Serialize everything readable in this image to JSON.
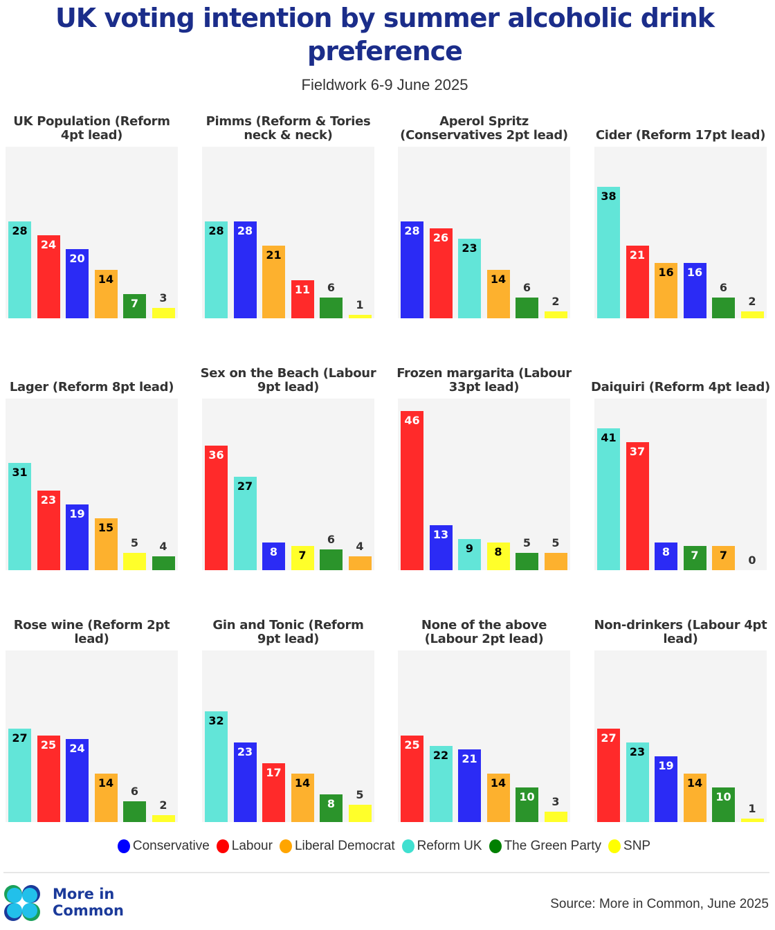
{
  "header": {
    "title": "UK voting intention by summer alcoholic drink preference",
    "subtitle": "Fieldwork 6-9 June 2025"
  },
  "parties": {
    "con": {
      "name": "Conservative",
      "color": "#2b2bf5",
      "label_color": "#ffffff"
    },
    "lab": {
      "name": "Labour",
      "color": "#ff2a2a",
      "label_color": "#ffffff"
    },
    "ld": {
      "name": "Liberal Democrat",
      "color": "#fdb12e",
      "label_color": "#000000"
    },
    "ref": {
      "name": "Reform UK",
      "color": "#62e5d8",
      "label_color": "#000000"
    },
    "grn": {
      "name": "The Green Party",
      "color": "#2b942b",
      "label_color": "#ffffff"
    },
    "snp": {
      "name": "SNP",
      "color": "#ffff2a",
      "label_color": "#000000"
    }
  },
  "legend": [
    {
      "key": "con",
      "label": "Conservative",
      "color": "#0000ff"
    },
    {
      "key": "lab",
      "label": "Labour",
      "color": "#ff0000"
    },
    {
      "key": "ld",
      "label": "Liberal Democrat",
      "color": "#ffa500"
    },
    {
      "key": "ref",
      "label": "Reform UK",
      "color": "#40e0d0"
    },
    {
      "key": "grn",
      "label": "The Green Party",
      "color": "#008000"
    },
    {
      "key": "snp",
      "label": "SNP",
      "color": "#ffff00"
    }
  ],
  "footer": {
    "brand_line1": "More in",
    "brand_line2": "Common",
    "source": "Source: More in Common, June 2025"
  },
  "chart_data": [
    {
      "type": "bar",
      "title": "UK Population (Reform 4pt lead)",
      "title_lines": [
        "UK Population (Reform",
        "4pt lead)"
      ],
      "ylim": [
        0,
        50
      ],
      "bars": [
        {
          "party": "ref",
          "value": 28
        },
        {
          "party": "lab",
          "value": 24
        },
        {
          "party": "con",
          "value": 20
        },
        {
          "party": "ld",
          "value": 14
        },
        {
          "party": "grn",
          "value": 7
        },
        {
          "party": "snp",
          "value": 3
        }
      ]
    },
    {
      "type": "bar",
      "title": "Pimms (Reform & Tories neck & neck)",
      "title_lines": [
        "Pimms (Reform & Tories",
        "neck & neck)"
      ],
      "ylim": [
        0,
        50
      ],
      "bars": [
        {
          "party": "ref",
          "value": 28
        },
        {
          "party": "con",
          "value": 28
        },
        {
          "party": "ld",
          "value": 21
        },
        {
          "party": "lab",
          "value": 11
        },
        {
          "party": "grn",
          "value": 6
        },
        {
          "party": "snp",
          "value": 1
        }
      ]
    },
    {
      "type": "bar",
      "title": "Aperol Spritz (Conservatives 2pt lead)",
      "title_lines": [
        "Aperol Spritz",
        "(Conservatives 2pt lead)"
      ],
      "ylim": [
        0,
        50
      ],
      "bars": [
        {
          "party": "con",
          "value": 28
        },
        {
          "party": "lab",
          "value": 26
        },
        {
          "party": "ref",
          "value": 23
        },
        {
          "party": "ld",
          "value": 14
        },
        {
          "party": "grn",
          "value": 6
        },
        {
          "party": "snp",
          "value": 2
        }
      ]
    },
    {
      "type": "bar",
      "title": "Cider (Reform 17pt lead)",
      "title_lines": [
        "Cider (Reform 17pt lead)"
      ],
      "ylim": [
        0,
        50
      ],
      "bars": [
        {
          "party": "ref",
          "value": 38
        },
        {
          "party": "lab",
          "value": 21
        },
        {
          "party": "ld",
          "value": 16
        },
        {
          "party": "con",
          "value": 16
        },
        {
          "party": "grn",
          "value": 6
        },
        {
          "party": "snp",
          "value": 2
        }
      ]
    },
    {
      "type": "bar",
      "title": "Lager (Reform 8pt lead)",
      "title_lines": [
        "Lager (Reform 8pt lead)"
      ],
      "ylim": [
        0,
        50
      ],
      "bars": [
        {
          "party": "ref",
          "value": 31
        },
        {
          "party": "lab",
          "value": 23
        },
        {
          "party": "con",
          "value": 19
        },
        {
          "party": "ld",
          "value": 15
        },
        {
          "party": "snp",
          "value": 5
        },
        {
          "party": "grn",
          "value": 4
        }
      ]
    },
    {
      "type": "bar",
      "title": "Sex on the Beach (Labour 9pt lead)",
      "title_lines": [
        "Sex on the Beach (Labour",
        "9pt lead)"
      ],
      "ylim": [
        0,
        50
      ],
      "bars": [
        {
          "party": "lab",
          "value": 36
        },
        {
          "party": "ref",
          "value": 27
        },
        {
          "party": "con",
          "value": 8
        },
        {
          "party": "snp",
          "value": 7
        },
        {
          "party": "grn",
          "value": 6
        },
        {
          "party": "ld",
          "value": 4
        }
      ]
    },
    {
      "type": "bar",
      "title": "Frozen margarita (Labour 33pt lead)",
      "title_lines": [
        "Frozen margarita (Labour",
        "33pt lead)"
      ],
      "ylim": [
        0,
        50
      ],
      "bars": [
        {
          "party": "lab",
          "value": 46
        },
        {
          "party": "con",
          "value": 13
        },
        {
          "party": "ref",
          "value": 9
        },
        {
          "party": "snp",
          "value": 8
        },
        {
          "party": "grn",
          "value": 5
        },
        {
          "party": "ld",
          "value": 5
        }
      ]
    },
    {
      "type": "bar",
      "title": "Daiquiri (Reform 4pt lead)",
      "title_lines": [
        "Daiquiri (Reform 4pt lead)"
      ],
      "ylim": [
        0,
        50
      ],
      "bars": [
        {
          "party": "ref",
          "value": 41
        },
        {
          "party": "lab",
          "value": 37
        },
        {
          "party": "con",
          "value": 8
        },
        {
          "party": "grn",
          "value": 7
        },
        {
          "party": "ld",
          "value": 7
        },
        {
          "party": "snp",
          "value": 0
        }
      ]
    },
    {
      "type": "bar",
      "title": "Rose wine (Reform 2pt lead)",
      "title_lines": [
        "Rose wine (Reform 2pt",
        "lead)"
      ],
      "ylim": [
        0,
        50
      ],
      "bars": [
        {
          "party": "ref",
          "value": 27
        },
        {
          "party": "lab",
          "value": 25
        },
        {
          "party": "con",
          "value": 24
        },
        {
          "party": "ld",
          "value": 14
        },
        {
          "party": "grn",
          "value": 6
        },
        {
          "party": "snp",
          "value": 2
        }
      ]
    },
    {
      "type": "bar",
      "title": "Gin and Tonic (Reform 9pt lead)",
      "title_lines": [
        "Gin and Tonic (Reform",
        "9pt lead)"
      ],
      "ylim": [
        0,
        50
      ],
      "bars": [
        {
          "party": "ref",
          "value": 32
        },
        {
          "party": "con",
          "value": 23
        },
        {
          "party": "lab",
          "value": 17
        },
        {
          "party": "ld",
          "value": 14
        },
        {
          "party": "grn",
          "value": 8
        },
        {
          "party": "snp",
          "value": 5
        }
      ]
    },
    {
      "type": "bar",
      "title": "None of the above (Labour 2pt lead)",
      "title_lines": [
        "None of the above",
        "(Labour 2pt lead)"
      ],
      "ylim": [
        0,
        50
      ],
      "bars": [
        {
          "party": "lab",
          "value": 25
        },
        {
          "party": "ref",
          "value": 22
        },
        {
          "party": "con",
          "value": 21
        },
        {
          "party": "ld",
          "value": 14
        },
        {
          "party": "grn",
          "value": 10
        },
        {
          "party": "snp",
          "value": 3
        }
      ]
    },
    {
      "type": "bar",
      "title": "Non-drinkers (Labour 4pt lead)",
      "title_lines": [
        "Non-drinkers (Labour 4pt",
        "lead)"
      ],
      "ylim": [
        0,
        50
      ],
      "bars": [
        {
          "party": "lab",
          "value": 27
        },
        {
          "party": "ref",
          "value": 23
        },
        {
          "party": "con",
          "value": 19
        },
        {
          "party": "ld",
          "value": 14
        },
        {
          "party": "grn",
          "value": 10
        },
        {
          "party": "snp",
          "value": 1
        }
      ]
    }
  ]
}
